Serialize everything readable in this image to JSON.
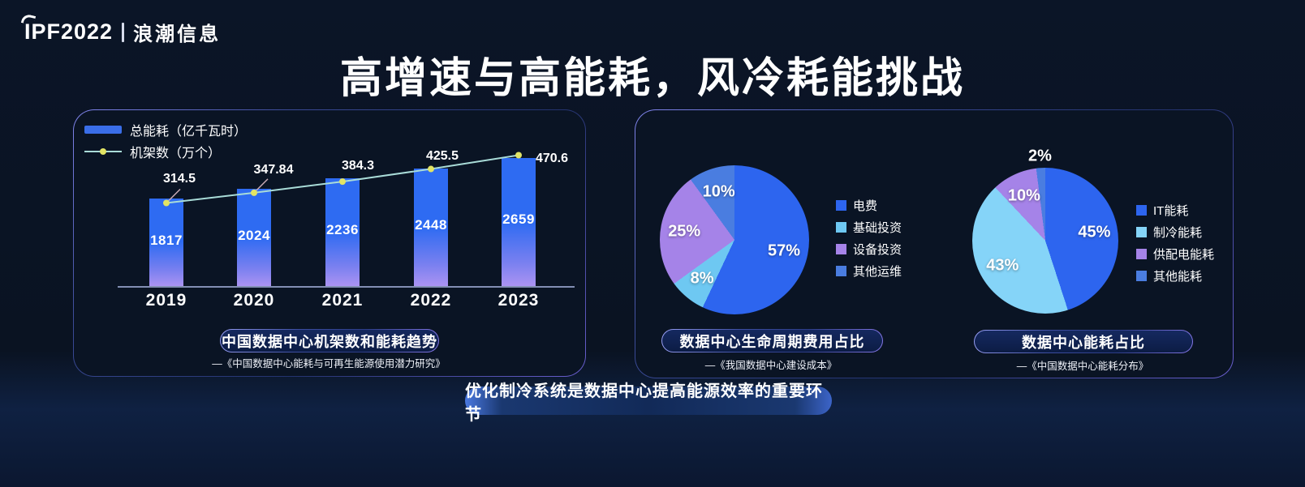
{
  "brand": {
    "left": "IPF2022",
    "separator": "|",
    "right": "浪潮信息"
  },
  "title": "高增速与高能耗，风冷耗能挑战",
  "footer_banner": "优化制冷系统是数据中心提高能源效率的重要环节",
  "colors": {
    "background": "#0a1322",
    "bar_top": "#2e6bf2",
    "bar_mid": "#7a80f0",
    "bar_bottom": "#ab93f2",
    "line": "#a9dcd8",
    "line_dot": "#e2e465",
    "leader": "#c9aab4",
    "axis": "#98a3cc",
    "legend_bar_swatch": "#3a6ee8",
    "panel_border": "#6a6fd8",
    "banner_fill": "#132a5c"
  },
  "chart_data": [
    {
      "type": "combo_bar_line",
      "title": "中国数据中心机架数和能耗趋势",
      "source": "—《中国数据中心能耗与可再生能源使用潜力研究》",
      "categories": [
        "2019",
        "2020",
        "2021",
        "2022",
        "2023"
      ],
      "legend_position": "top-left",
      "grid": false,
      "series": [
        {
          "name": "总能耗（亿千瓦时）",
          "type": "bar",
          "values": [
            1817,
            2024,
            2236,
            2448,
            2659
          ]
        },
        {
          "name": "机架数（万个）",
          "type": "line",
          "values": [
            314.5,
            347.84,
            384.3,
            425.5,
            470.6
          ],
          "labels": [
            "314.5",
            "347.84",
            "384.3",
            "425.5",
            "470.6"
          ]
        }
      ]
    },
    {
      "type": "pie",
      "title": "数据中心生命周期费用占比",
      "source": "—《我国数据中心建设成本》",
      "legend_position": "right",
      "slices": [
        {
          "label": "电费",
          "pct": 57,
          "color": "#2d65ef"
        },
        {
          "label": "基础投资",
          "pct": 8,
          "color": "#6ec8f2"
        },
        {
          "label": "设备投资",
          "pct": 25,
          "color": "#a583e8"
        },
        {
          "label": "其他运维",
          "pct": 10,
          "color": "#4a7de0"
        }
      ]
    },
    {
      "type": "pie",
      "title": "数据中心能耗占比",
      "source": "—《中国数据中心能耗分布》",
      "legend_position": "right",
      "slices": [
        {
          "label": "IT能耗",
          "pct": 45,
          "color": "#2d65ef"
        },
        {
          "label": "制冷能耗",
          "pct": 43,
          "color": "#85d4f8"
        },
        {
          "label": "供配电能耗",
          "pct": 10,
          "color": "#a583e8"
        },
        {
          "label": "其他能耗",
          "pct": 2,
          "color": "#4a7de0"
        }
      ]
    }
  ]
}
